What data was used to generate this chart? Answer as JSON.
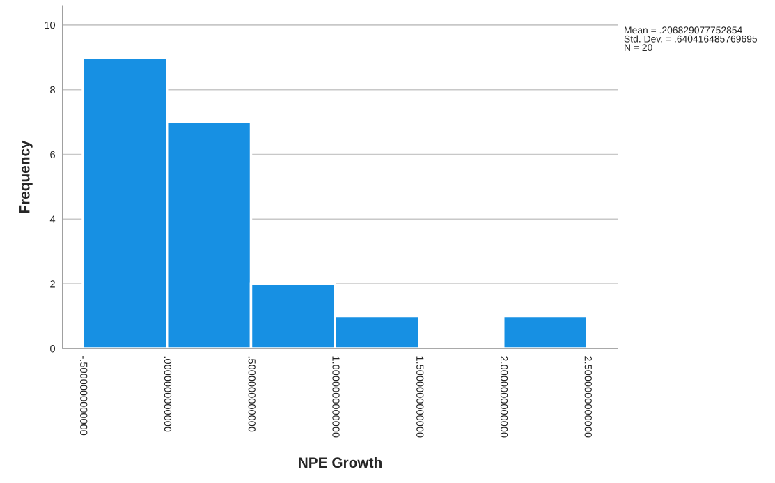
{
  "chart_data": {
    "type": "histogram",
    "xlabel": "NPE Growth",
    "ylabel": "Frequency",
    "bins": [
      -0.5,
      0.0,
      0.5,
      1.0,
      1.5,
      2.0,
      2.5
    ],
    "values": [
      9,
      7,
      2,
      1,
      0,
      1
    ],
    "color": "#1790e3",
    "xlim": [
      -0.62,
      2.68
    ],
    "ylim": [
      0,
      10.6
    ],
    "xticks": [
      {
        "value": -0.5,
        "label": "-.5000000000000"
      },
      {
        "value": 0.0,
        "label": ".0000000000000"
      },
      {
        "value": 0.5,
        "label": ".5000000000000"
      },
      {
        "value": 1.0,
        "label": "1.0000000000000"
      },
      {
        "value": 1.5,
        "label": "1.5000000000000"
      },
      {
        "value": 2.0,
        "label": "2.0000000000000"
      },
      {
        "value": 2.5,
        "label": "2.5000000000000"
      }
    ],
    "yticks": [
      0,
      2,
      4,
      6,
      8,
      10
    ],
    "grid": "y",
    "annotations": [
      "Mean = .206829077752854\nStd. Dev. = .640416485769695\nN = 20"
    ]
  }
}
